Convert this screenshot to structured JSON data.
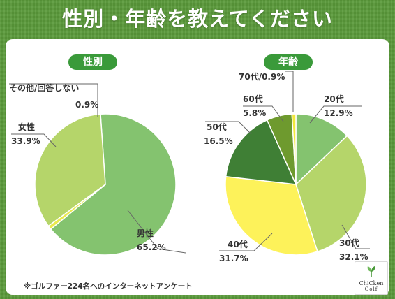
{
  "title": "性別・年齢を教えてください",
  "footnote": "※ゴルファー224名へのインターネットアンケート",
  "logo": {
    "line1": "ChiCken",
    "line2": "Golf"
  },
  "colors": {
    "background": "#5a9a3a",
    "pill": "#3a9a3a",
    "male": "#84c36f",
    "female": "#b5d56a",
    "other": "#eaea4e",
    "age20": "#84c36f",
    "age30": "#b5d56a",
    "age40": "#fdf25a",
    "age50": "#3f7f35",
    "age60": "#6e9a2e",
    "age70": "#f2e83a"
  },
  "chart_data": [
    {
      "type": "pie",
      "title": "性別",
      "slices": [
        {
          "name": "男性",
          "value": 65.2,
          "label": "65.2%",
          "color": "#84c36f"
        },
        {
          "name": "その他/回答しない",
          "value": 0.9,
          "label": "0.9%",
          "color": "#eaea4e"
        },
        {
          "name": "女性",
          "value": 33.9,
          "label": "33.9%",
          "color": "#b5d56a"
        }
      ]
    },
    {
      "type": "pie",
      "title": "年齢",
      "slices": [
        {
          "name": "20代",
          "value": 12.9,
          "label": "12.9%",
          "color": "#84c36f"
        },
        {
          "name": "30代",
          "value": 32.1,
          "label": "32.1%",
          "color": "#b5d56a"
        },
        {
          "name": "40代",
          "value": 31.7,
          "label": "31.7%",
          "color": "#fdf25a"
        },
        {
          "name": "50代",
          "value": 16.5,
          "label": "16.5%",
          "color": "#3f7f35"
        },
        {
          "name": "60代",
          "value": 5.8,
          "label": "5.8%",
          "color": "#6e9a2e"
        },
        {
          "name": "70代",
          "value": 0.9,
          "label": "0.9%",
          "color": "#f2e83a"
        }
      ]
    }
  ]
}
